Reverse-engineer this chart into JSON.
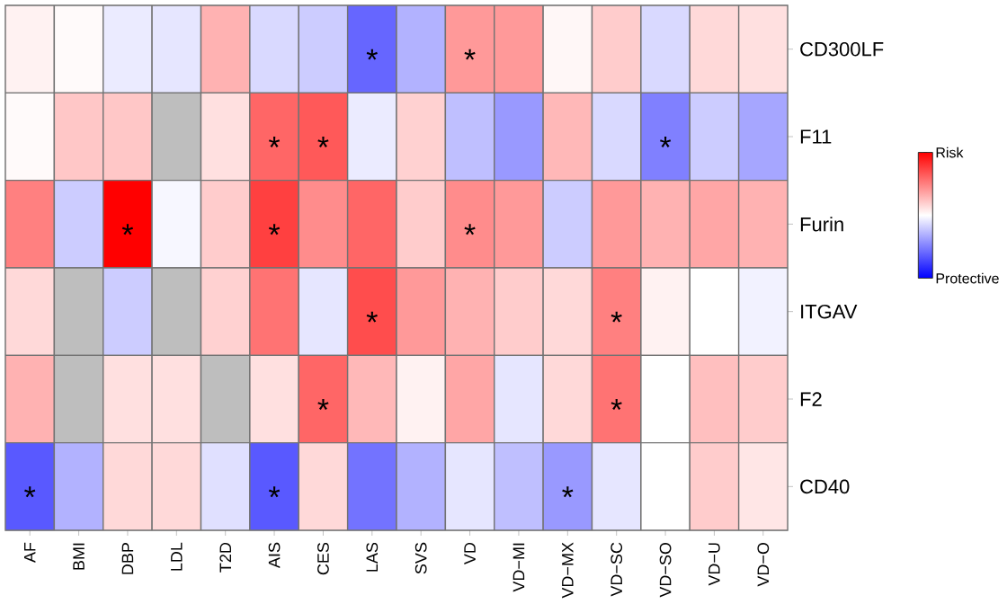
{
  "chart_data": {
    "type": "heatmap",
    "categories": [
      "AF",
      "BMI",
      "DBP",
      "LDL",
      "T2D",
      "AIS",
      "CES",
      "LAS",
      "SVS",
      "VD",
      "VD−MI",
      "VD−MX",
      "VD−SC",
      "VD−SO",
      "VD−U",
      "VD−O"
    ],
    "y_categories": [
      "CD300LF",
      "F11",
      "Furin",
      "ITGAV",
      "F2",
      "CD40"
    ],
    "cells": [
      [
        0.05,
        0.02,
        -0.08,
        -0.1,
        0.3,
        -0.15,
        -0.2,
        -0.6,
        -0.3,
        0.4,
        0.4,
        0.03,
        0.2,
        -0.15,
        0.15,
        0.12
      ],
      [
        0.02,
        0.22,
        0.22,
        null,
        0.12,
        0.6,
        0.65,
        -0.08,
        0.18,
        -0.25,
        -0.4,
        0.28,
        -0.15,
        -0.5,
        -0.2,
        -0.35
      ],
      [
        0.5,
        -0.2,
        1,
        -0.03,
        0.2,
        0.75,
        0.45,
        0.6,
        0.2,
        0.45,
        0.4,
        -0.2,
        0.4,
        0.3,
        0.35,
        0.3
      ],
      [
        0.15,
        null,
        -0.2,
        null,
        0.18,
        0.55,
        -0.1,
        0.7,
        0.4,
        0.3,
        0.2,
        0.15,
        0.5,
        0.05,
        0.0,
        -0.05
      ],
      [
        0.3,
        null,
        0.12,
        0.12,
        null,
        0.12,
        0.6,
        0.28,
        0.05,
        0.35,
        -0.1,
        0.15,
        0.55,
        0.0,
        0.25,
        0.2
      ],
      [
        -0.65,
        -0.3,
        0.15,
        0.15,
        -0.12,
        -0.65,
        0.15,
        -0.55,
        -0.3,
        -0.1,
        -0.25,
        -0.4,
        -0.1,
        0.0,
        0.2,
        0.1
      ]
    ],
    "cell_labels": [
      [
        null,
        null,
        null,
        null,
        null,
        null,
        null,
        "*",
        null,
        "*",
        null,
        null,
        null,
        null,
        null,
        null
      ],
      [
        null,
        null,
        null,
        null,
        null,
        "*",
        "*",
        null,
        null,
        null,
        null,
        null,
        null,
        "*",
        null,
        null
      ],
      [
        null,
        null,
        "*",
        null,
        null,
        "*",
        null,
        null,
        null,
        "*",
        null,
        null,
        null,
        null,
        null,
        null
      ],
      [
        null,
        null,
        null,
        null,
        null,
        null,
        null,
        "*",
        null,
        null,
        null,
        null,
        "*",
        null,
        null,
        null
      ],
      [
        null,
        null,
        null,
        null,
        null,
        null,
        "*",
        null,
        null,
        null,
        null,
        null,
        "*",
        null,
        null,
        null
      ],
      [
        "*",
        null,
        null,
        null,
        null,
        "*",
        null,
        null,
        null,
        null,
        null,
        "*",
        null,
        null,
        null,
        null
      ]
    ],
    "clim": [
      -1,
      1
    ],
    "cticks": [
      {
        "value": 1,
        "label": "Risk"
      },
      {
        "value": -1,
        "label": "Protective"
      }
    ]
  }
}
